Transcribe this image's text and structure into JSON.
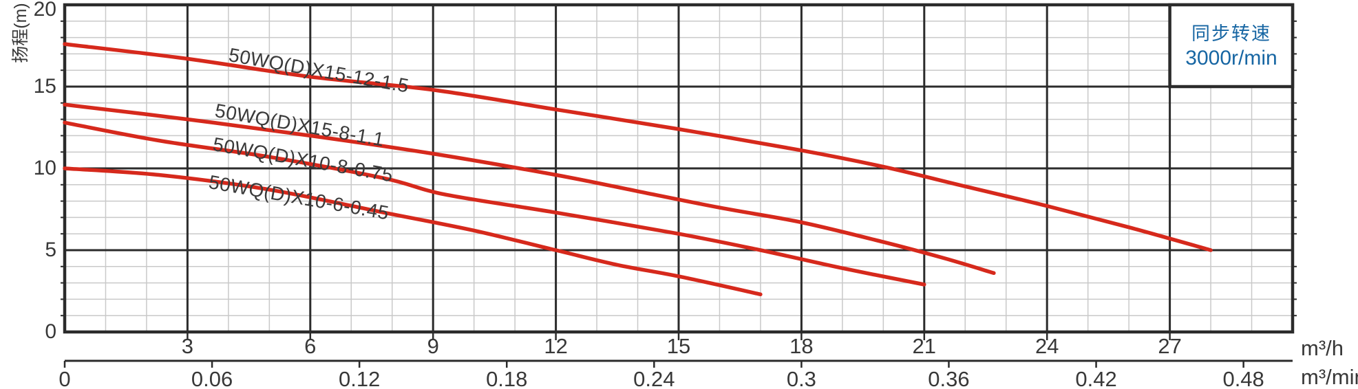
{
  "chart_data": {
    "type": "line",
    "title": "",
    "y_axis": {
      "label": "扬程(m)",
      "range": [
        0,
        20
      ],
      "major_step": 5,
      "minor_step": 1,
      "tick_values": [
        0,
        5,
        10,
        15,
        20
      ],
      "tick_labels": [
        "0",
        "5",
        "10",
        "15",
        "20"
      ]
    },
    "x_axis_primary": {
      "unit": "m³/h",
      "range": [
        0,
        30
      ],
      "major_step": 3,
      "minor_step": 1,
      "tick_values": [
        3,
        6,
        9,
        12,
        15,
        18,
        21,
        24,
        27
      ],
      "tick_labels": [
        "3",
        "6",
        "9",
        "12",
        "15",
        "18",
        "21",
        "24",
        "27"
      ]
    },
    "x_axis_secondary": {
      "unit": "m³/min",
      "range": [
        0,
        0.5
      ],
      "hours_per_unit": 60,
      "tick_values": [
        0,
        0.06,
        0.12,
        0.18,
        0.24,
        0.3,
        0.36,
        0.42,
        0.48
      ],
      "tick_labels": [
        "0",
        "0.06",
        "0.12",
        "0.18",
        "0.24",
        "0.3",
        "0.36",
        "0.42",
        "0.48"
      ]
    },
    "grid": {
      "minor_color": "#c9c9c9",
      "major_color": "#2b2b2b",
      "border_color": "#2b2b2b",
      "background": "#ffffff"
    },
    "series": [
      {
        "name": "50WQ(D)X15-12-1.5",
        "color": "#d6291c",
        "points": [
          [
            0,
            17.6
          ],
          [
            3,
            16.7
          ],
          [
            6,
            15.6
          ],
          [
            9,
            14.8
          ],
          [
            12,
            13.6
          ],
          [
            15,
            12.4
          ],
          [
            18,
            11.1
          ],
          [
            20,
            10.1
          ],
          [
            22,
            8.9
          ],
          [
            24,
            7.7
          ],
          [
            26,
            6.4
          ],
          [
            28,
            5.0
          ]
        ]
      },
      {
        "name": "50WQ(D)X15-8-1.1",
        "color": "#d6291c",
        "points": [
          [
            0,
            13.9
          ],
          [
            3,
            13.0
          ],
          [
            6,
            12.0
          ],
          [
            9,
            10.9
          ],
          [
            12,
            9.6
          ],
          [
            14,
            8.6
          ],
          [
            16,
            7.6
          ],
          [
            18,
            6.7
          ],
          [
            20,
            5.5
          ],
          [
            21.5,
            4.5
          ],
          [
            22.7,
            3.6
          ]
        ]
      },
      {
        "name": "50WQ(D)X10-8-0.75",
        "color": "#d6291c",
        "points": [
          [
            0,
            12.8
          ],
          [
            2.3,
            11.7
          ],
          [
            5,
            10.7
          ],
          [
            7.8,
            9.4
          ],
          [
            9.3,
            8.4
          ],
          [
            12,
            7.3
          ],
          [
            15,
            6.0
          ],
          [
            17,
            5.0
          ],
          [
            19,
            3.9
          ],
          [
            21,
            2.9
          ]
        ]
      },
      {
        "name": "50WQ(D)X10-6-0.45",
        "color": "#d6291c",
        "points": [
          [
            0,
            10.0
          ],
          [
            2.3,
            9.6
          ],
          [
            5,
            8.7
          ],
          [
            7.8,
            7.3
          ],
          [
            10,
            6.2
          ],
          [
            12,
            5.0
          ],
          [
            13.5,
            4.1
          ],
          [
            15,
            3.4
          ],
          [
            17,
            2.3
          ]
        ]
      }
    ],
    "annotation": {
      "line1": "同步转速",
      "line2": "3000r/min",
      "color": "#1766a3"
    }
  }
}
